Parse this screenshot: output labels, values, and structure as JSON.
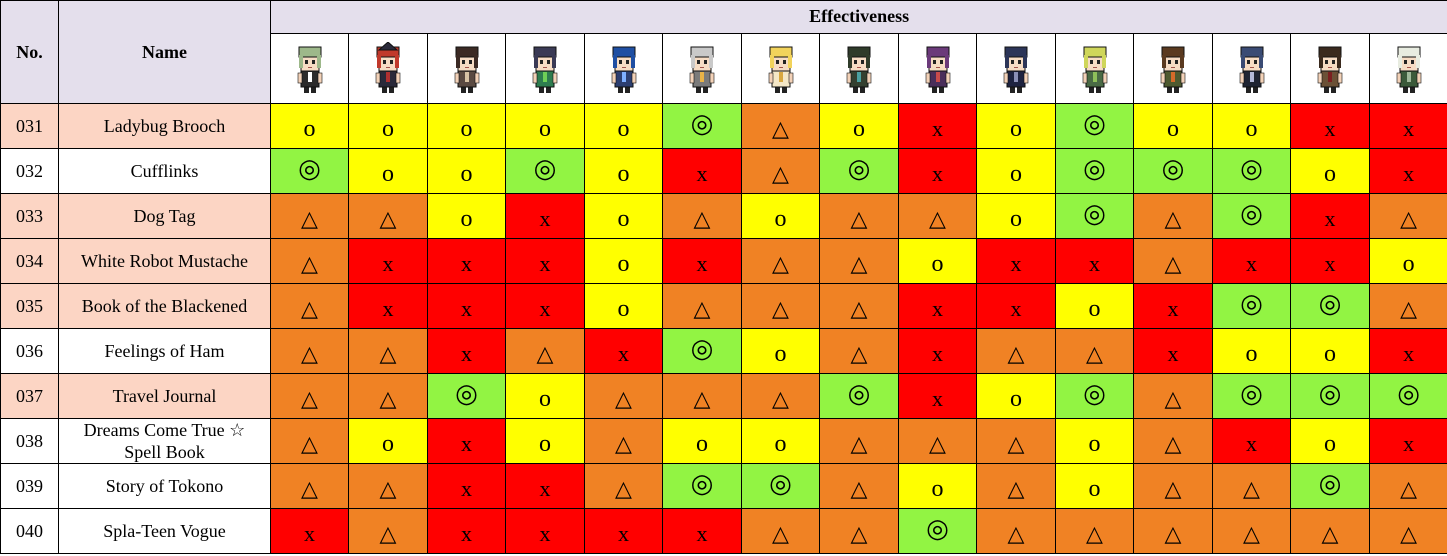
{
  "header": {
    "no": "No.",
    "name": "Name",
    "effectiveness": "Effectiveness"
  },
  "characters": [
    {
      "icon": "green-hair-maid-sprite",
      "hair": "#9db88a",
      "outfit": "#2b2b2b",
      "accent": "#ffffff"
    },
    {
      "icon": "red-hair-witch-sprite",
      "hair": "#c0392b",
      "outfit": "#2a2a3a",
      "accent": "#b03030",
      "hat": true
    },
    {
      "icon": "long-brown-hair-sprite",
      "hair": "#3b2a24",
      "outfit": "#5a4a42",
      "accent": "#d8c3a5"
    },
    {
      "icon": "pigtails-green-ribbons-sprite",
      "hair": "#3a3a55",
      "outfit": "#2e7d4f",
      "accent": "#6fcf57"
    },
    {
      "icon": "blue-hair-glasses-sprite",
      "hair": "#1f4fa3",
      "outfit": "#2c3e70",
      "accent": "#7fb0ff"
    },
    {
      "icon": "robot-sprite",
      "hair": "#c9c9c9",
      "outfit": "#7b7b7b",
      "accent": "#e8b347"
    },
    {
      "icon": "blonde-twintails-sprite",
      "hair": "#f2d35b",
      "outfit": "#f4e7c6",
      "accent": "#d8a73f"
    },
    {
      "icon": "dark-cap-sprite",
      "hair": "#2f3b2a",
      "outfit": "#344030",
      "accent": "#4aa0a0"
    },
    {
      "icon": "purple-spiky-hair-sprite",
      "hair": "#6b3a7a",
      "outfit": "#4a2e5a",
      "accent": "#c94b4b"
    },
    {
      "icon": "navy-hair-cat-ears-sprite",
      "hair": "#2c3558",
      "outfit": "#1e2340",
      "accent": "#8a8fb5"
    },
    {
      "icon": "blonde-ahoge-sprite",
      "hair": "#cfd65a",
      "outfit": "#4a6b45",
      "accent": "#8fbf5a"
    },
    {
      "icon": "wild-brown-hair-sprite",
      "hair": "#5a3a20",
      "outfit": "#4e5a30",
      "accent": "#d46a2a"
    },
    {
      "icon": "dark-blue-short-hair-sprite",
      "hair": "#3a4b74",
      "outfit": "#202533",
      "accent": "#b4b9d8"
    },
    {
      "icon": "cap-dreadlocks-sprite",
      "hair": "#3a2a1e",
      "outfit": "#6b5136",
      "accent": "#7a1f1f"
    },
    {
      "icon": "white-spiky-hair-sprite",
      "hair": "#e8ece0",
      "outfit": "#3b5a3a",
      "accent": "#9fb89a"
    }
  ],
  "colors": {
    "O": "#ffff00",
    "T": "#f08224",
    "X": "#ff0000",
    "D": "#92f443"
  },
  "symbols": {
    "O": "o",
    "T": "△",
    "X": "x",
    "D": "◎"
  },
  "rows": [
    {
      "no": "031",
      "name": "Ladybug Brooch",
      "highlight": true,
      "cells": [
        "O",
        "O",
        "O",
        "O",
        "O",
        "D",
        "T",
        "O",
        "X",
        "O",
        "D",
        "O",
        "O",
        "X",
        "X"
      ]
    },
    {
      "no": "032",
      "name": "Cufflinks",
      "highlight": false,
      "cells": [
        "D",
        "O",
        "O",
        "D",
        "O",
        "X",
        "T",
        "D",
        "X",
        "O",
        "D",
        "D",
        "D",
        "O",
        "X"
      ]
    },
    {
      "no": "033",
      "name": "Dog Tag",
      "highlight": true,
      "cells": [
        "T",
        "T",
        "O",
        "X",
        "O",
        "T",
        "O",
        "T",
        "T",
        "O",
        "D",
        "T",
        "D",
        "X",
        "T"
      ]
    },
    {
      "no": "034",
      "name": "White Robot Mustache",
      "highlight": true,
      "cells": [
        "T",
        "X",
        "X",
        "X",
        "O",
        "X",
        "T",
        "T",
        "O",
        "X",
        "X",
        "T",
        "X",
        "X",
        "O"
      ]
    },
    {
      "no": "035",
      "name": "Book of the Blackened",
      "highlight": true,
      "cells": [
        "T",
        "X",
        "X",
        "X",
        "O",
        "T",
        "T",
        "T",
        "X",
        "X",
        "O",
        "X",
        "D",
        "D",
        "T"
      ]
    },
    {
      "no": "036",
      "name": "Feelings of Ham",
      "highlight": false,
      "cells": [
        "T",
        "T",
        "X",
        "T",
        "X",
        "D",
        "O",
        "T",
        "X",
        "T",
        "T",
        "X",
        "O",
        "O",
        "X"
      ]
    },
    {
      "no": "037",
      "name": "Travel Journal",
      "highlight": true,
      "cells": [
        "T",
        "T",
        "D",
        "O",
        "T",
        "T",
        "T",
        "D",
        "X",
        "O",
        "D",
        "T",
        "D",
        "D",
        "D"
      ]
    },
    {
      "no": "038",
      "name": "Dreams Come True ☆ Spell Book",
      "highlight": false,
      "cells": [
        "T",
        "O",
        "X",
        "O",
        "T",
        "O",
        "O",
        "T",
        "T",
        "T",
        "O",
        "T",
        "X",
        "O",
        "X"
      ]
    },
    {
      "no": "039",
      "name": "Story of Tokono",
      "highlight": false,
      "cells": [
        "T",
        "T",
        "X",
        "X",
        "T",
        "D",
        "D",
        "T",
        "O",
        "T",
        "O",
        "T",
        "T",
        "D",
        "T"
      ]
    },
    {
      "no": "040",
      "name": "Spla-Teen Vogue",
      "highlight": false,
      "cells": [
        "X",
        "T",
        "X",
        "X",
        "X",
        "X",
        "T",
        "T",
        "D",
        "T",
        "T",
        "T",
        "T",
        "T",
        "T"
      ]
    }
  ]
}
